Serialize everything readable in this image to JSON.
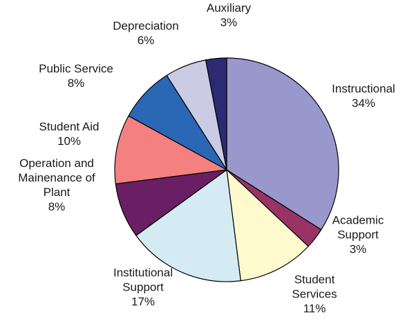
{
  "chart_data": {
    "type": "pie",
    "title": "",
    "slices": [
      {
        "label": [
          "Instructional"
        ],
        "pct_label": "34%",
        "value": 34,
        "color": "#9898cc"
      },
      {
        "label": [
          "Academic",
          "Support"
        ],
        "pct_label": "3%",
        "value": 3,
        "color": "#993366"
      },
      {
        "label": [
          "Student",
          "Services"
        ],
        "pct_label": "11%",
        "value": 11,
        "color": "#fefacd"
      },
      {
        "label": [
          "Institutional",
          "Support"
        ],
        "pct_label": "17%",
        "value": 17,
        "color": "#d4ebf3"
      },
      {
        "label": [
          "Operation and",
          "Mainenance of",
          "Plant"
        ],
        "pct_label": "8%",
        "value": 8,
        "color": "#6a1e63"
      },
      {
        "label": [
          "Student Aid"
        ],
        "pct_label": "10%",
        "value": 10,
        "color": "#f48080"
      },
      {
        "label": [
          "Public Service"
        ],
        "pct_label": "8%",
        "value": 8,
        "color": "#2a68b6"
      },
      {
        "label": [
          "Depreciation"
        ],
        "pct_label": "6%",
        "value": 6,
        "color": "#cbcbe6"
      },
      {
        "label": [
          "Auxiliary"
        ],
        "pct_label": "3%",
        "value": 3,
        "color": "#2b2a73"
      }
    ]
  }
}
